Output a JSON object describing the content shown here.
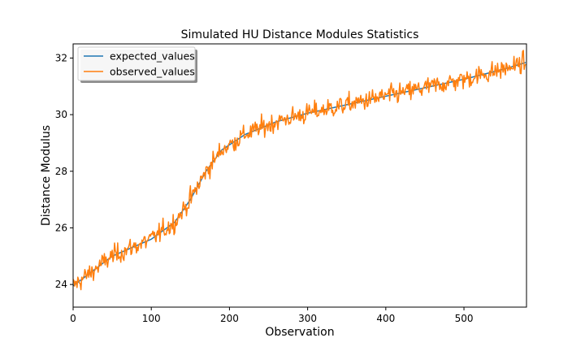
{
  "chart_data": {
    "type": "line",
    "title": "Simulated HU Distance Modules Statistics",
    "xlabel": "Observation",
    "ylabel": "Distance Modulus",
    "xlim": [
      0,
      580
    ],
    "ylim": [
      23.2,
      32.5
    ],
    "x_ticks": [
      0,
      100,
      200,
      300,
      400,
      500
    ],
    "y_ticks": [
      24,
      26,
      28,
      30,
      32
    ],
    "grid": false,
    "legend": "top-left",
    "n_points": 580,
    "series": [
      {
        "name": "expected_values",
        "color": "#1f77b4",
        "x": [
          0,
          50,
          100,
          130,
          150,
          170,
          190,
          220,
          260,
          300,
          350,
          400,
          450,
          500,
          550,
          580
        ],
        "y": [
          23.95,
          25.0,
          25.6,
          26.2,
          27.0,
          28.0,
          28.75,
          29.3,
          29.75,
          30.05,
          30.35,
          30.65,
          30.95,
          31.25,
          31.6,
          31.85
        ]
      },
      {
        "name": "observed_values",
        "color": "#ff7f0e",
        "noise_amplitude": 0.25
      }
    ]
  }
}
